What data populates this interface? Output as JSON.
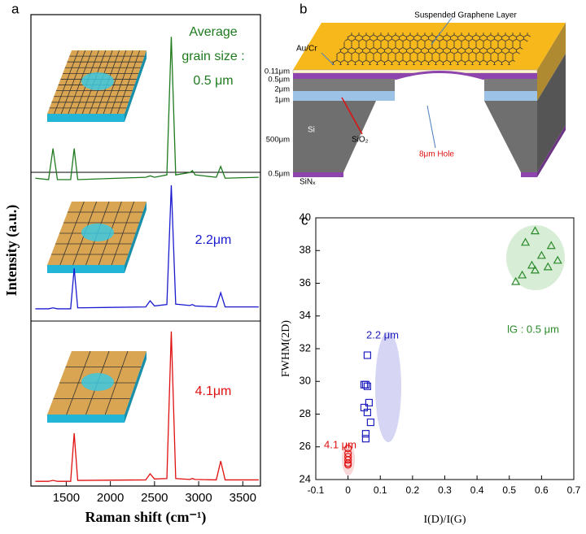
{
  "panel_labels": [
    "a",
    "b",
    "c"
  ],
  "chart_data": [
    {
      "type": "line",
      "x_label": "Raman shift (cm⁻¹)",
      "y_label": "Intensity (a.u.)",
      "annotation_lines": [
        "Average",
        "grain size :"
      ],
      "xlim": [
        1100,
        3700
      ],
      "xticks": [
        1500,
        2000,
        2500,
        3000,
        3500
      ],
      "ylim": [
        0,
        100
      ],
      "x": [
        1150,
        1300,
        1350,
        1400,
        1550,
        1590,
        1630,
        2400,
        2450,
        2500,
        2640,
        2690,
        2740,
        2900,
        2930,
        2960,
        3200,
        3250,
        3300,
        3680
      ],
      "series": [
        {
          "name": "0.5 μm",
          "color": "#1e7a1e",
          "values": [
            65.3,
            65,
            71.6,
            65,
            65,
            71.6,
            65,
            65.5,
            65.8,
            65.5,
            66,
            95.3,
            66,
            66.5,
            66.9,
            66,
            65.5,
            67.8,
            65.3,
            65.5
          ]
        },
        {
          "name": "2.2μm",
          "color": "#1a1ad0",
          "values": [
            37.6,
            37.6,
            37.8,
            37.6,
            37.6,
            46.2,
            37.8,
            38,
            39.3,
            38.2,
            38.5,
            63.8,
            38.6,
            38.3,
            38.5,
            38.2,
            38,
            41,
            38,
            38
          ]
        },
        {
          "name": "4.1μm",
          "color": "#e01010",
          "values": [
            1,
            1,
            1.2,
            1,
            1,
            11.2,
            1.2,
            1.3,
            2.6,
            1.5,
            1.6,
            32.8,
            1.6,
            1.4,
            1.6,
            1.4,
            1.3,
            5.3,
            1.3,
            1.3
          ]
        }
      ]
    },
    {
      "type": "scatter",
      "x_label": "I(D)/I(G)",
      "y_label": "FWHM(2D)",
      "xlim": [
        -0.1,
        0.7
      ],
      "xticks": [
        -0.1,
        0,
        0.1,
        0.2,
        0.3,
        0.4,
        0.5,
        0.6,
        0.7
      ],
      "ylim": [
        24,
        40
      ],
      "yticks": [
        24,
        26,
        28,
        30,
        32,
        34,
        36,
        38,
        40
      ],
      "series": [
        {
          "name": "4.1 μm",
          "color": "#e01010",
          "marker": "circle",
          "x": [
            0,
            0,
            0,
            0,
            0,
            0
          ],
          "values": [
            25.9,
            25.6,
            25.4,
            25.2,
            25.0,
            24.9
          ]
        },
        {
          "name": "2.2 μm",
          "color": "#2020c0",
          "marker": "square",
          "x": [
            0.06,
            0.05,
            0.055,
            0.06,
            0.065,
            0.05,
            0.06,
            0.07,
            0.055,
            0.055
          ],
          "values": [
            31.6,
            29.8,
            29.8,
            29.7,
            28.7,
            28.4,
            28.1,
            27.5,
            26.8,
            26.5
          ]
        },
        {
          "name": "lG : 0.5 μm",
          "color": "#2a8a2a",
          "marker": "triangle",
          "x": [
            0.58,
            0.55,
            0.63,
            0.6,
            0.65,
            0.57,
            0.62,
            0.58,
            0.54,
            0.52
          ],
          "values": [
            39.2,
            38.5,
            38.3,
            37.7,
            37.4,
            37.1,
            37,
            36.8,
            36.5,
            36.1
          ]
        }
      ]
    }
  ],
  "diagram": {
    "title": "Suspended Graphene Layer",
    "metal": "Au/Cr",
    "layers": [
      "0.11μm",
      "0.5μm",
      "2μm",
      "1μm",
      "500μm",
      "0.5μm"
    ],
    "si": "Si",
    "sio2": "SiO₂",
    "hole": "8μm Hole",
    "sinx": "SiNₓ"
  }
}
